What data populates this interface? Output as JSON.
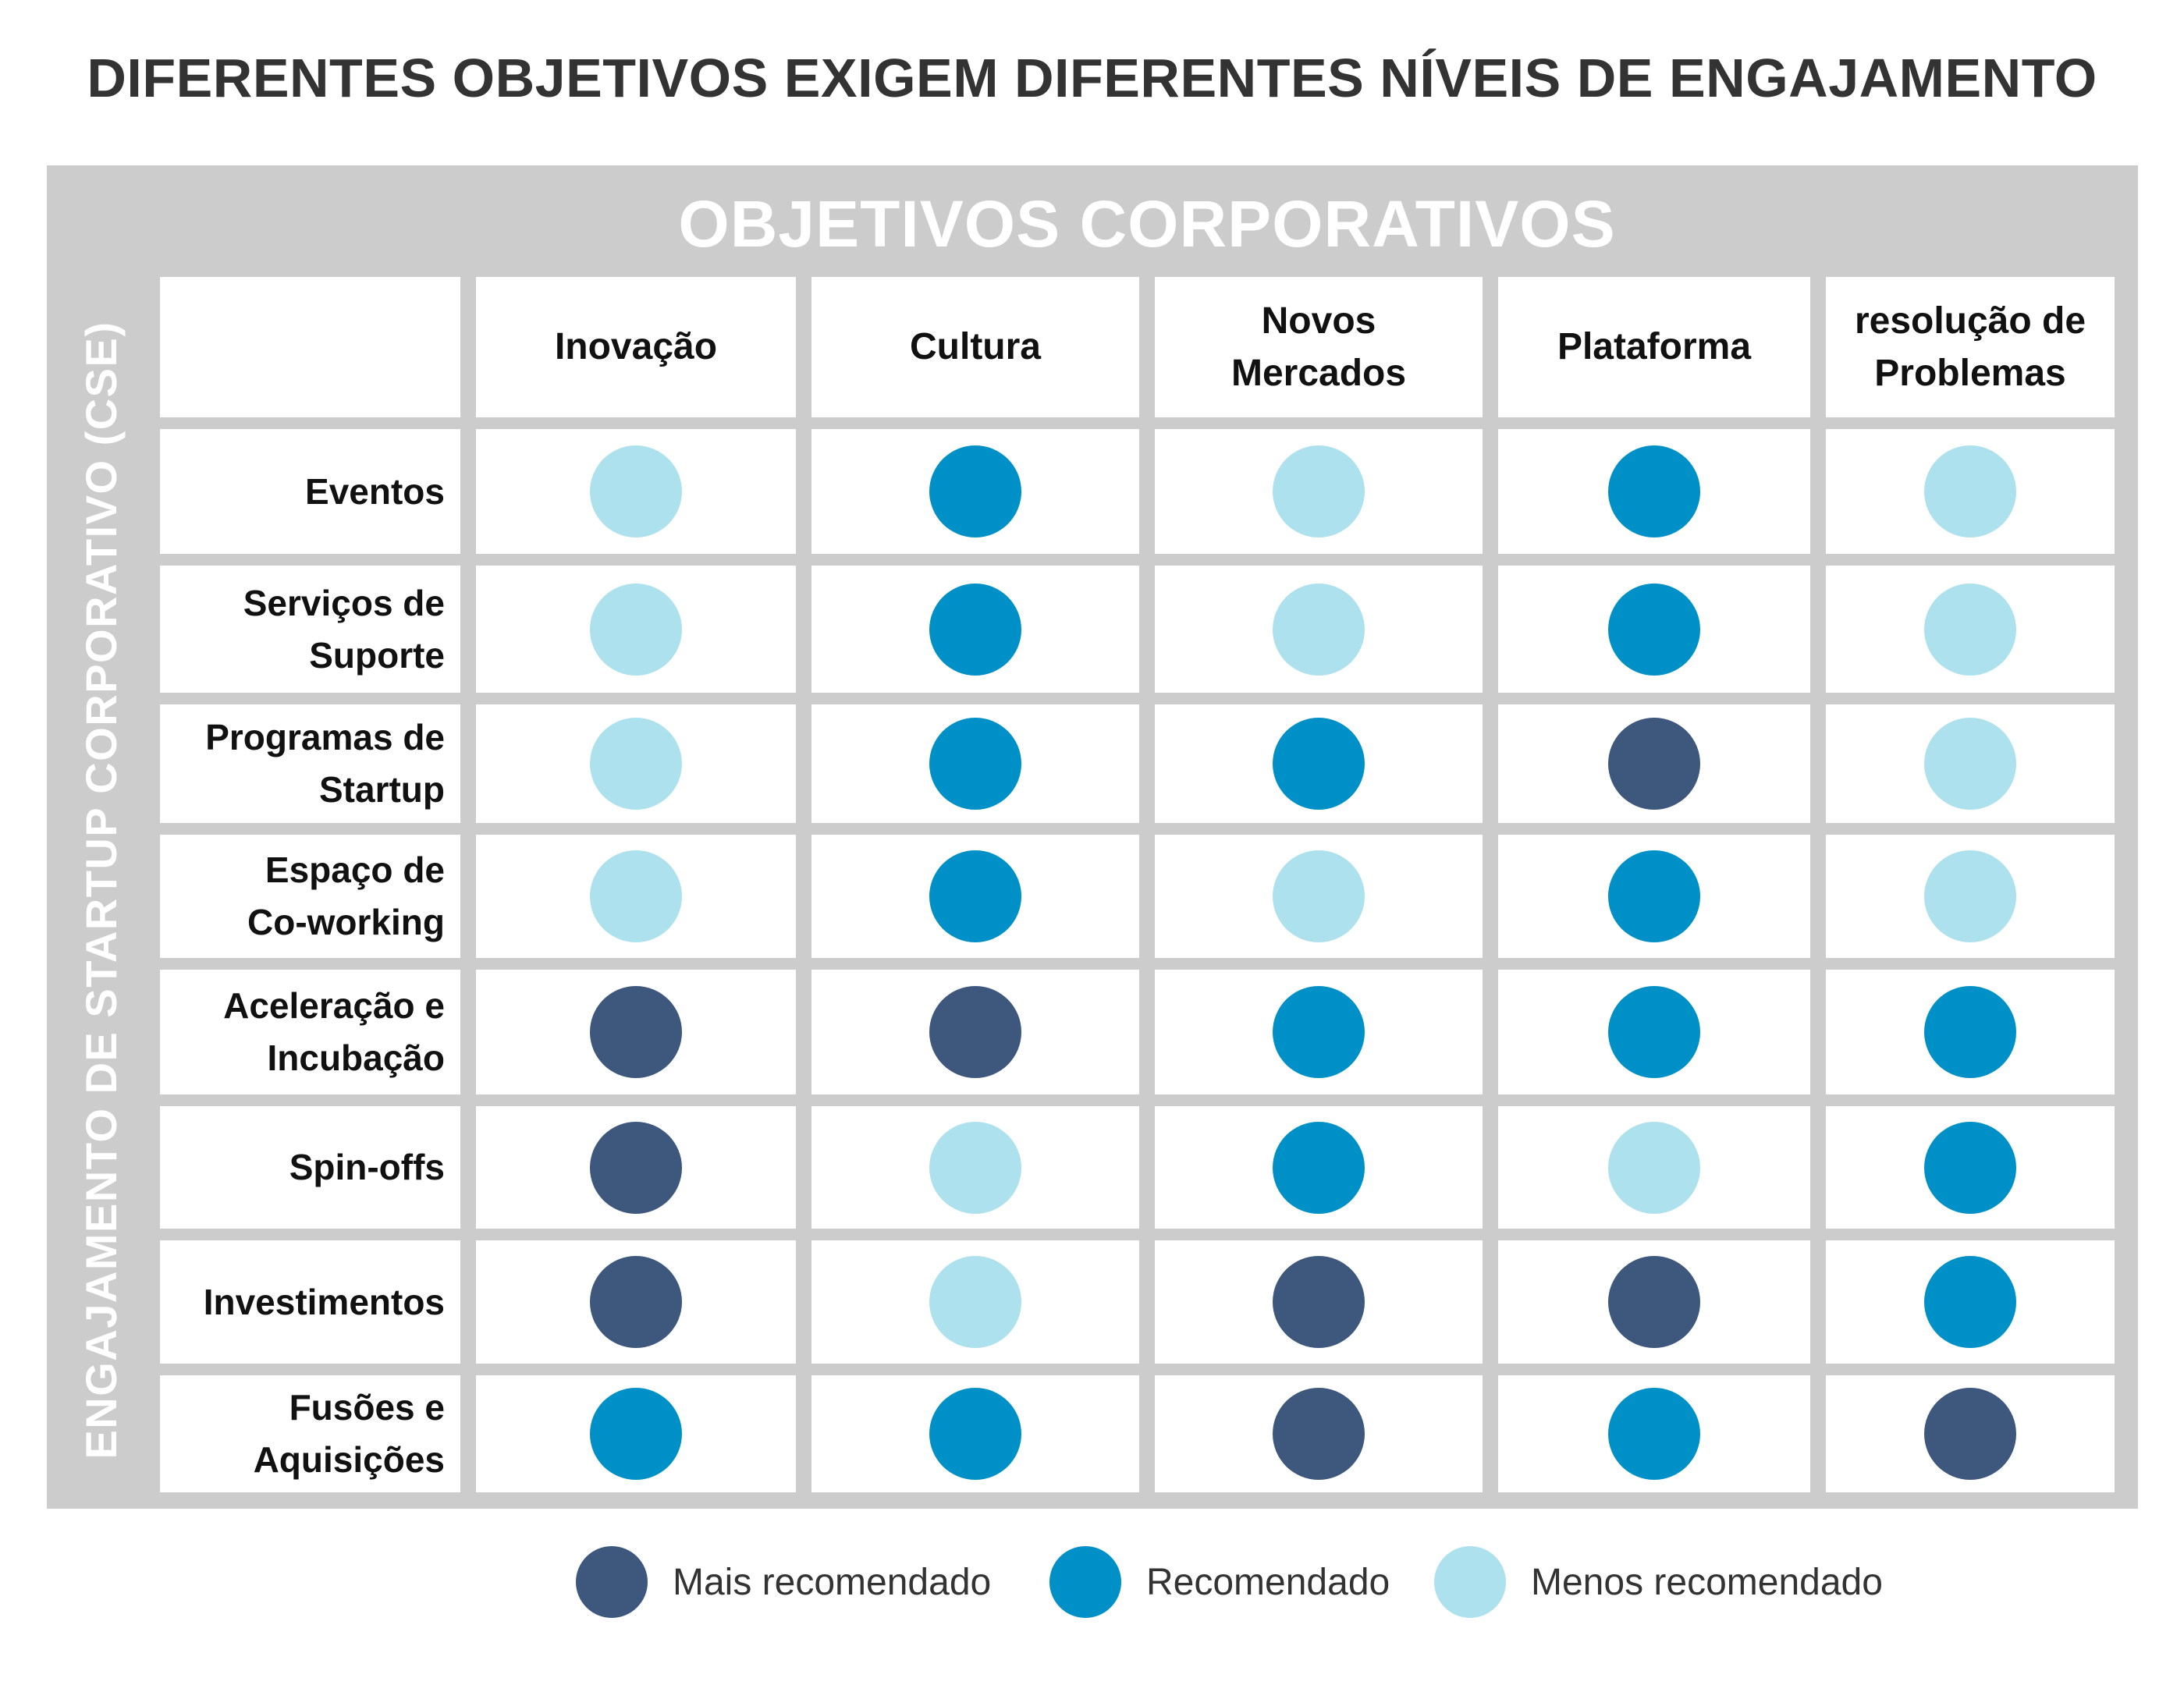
{
  "title": "DIFERENTES OBJETIVOS EXIGEM DIFERENTES NÍVEIS DE ENGAJAMENTO",
  "chart_data": {
    "type": "table",
    "column_axis_title": "OBJETIVOS CORPORATIVOS",
    "row_axis_title": "ENGAJAMENTO DE STARTUP CORPORATIVO  (CSE)",
    "columns": [
      [
        "Inovação"
      ],
      [
        "Cultura"
      ],
      [
        "Novos",
        "Mercados"
      ],
      [
        "Plataforma"
      ],
      [
        "resolução de",
        "Problemas"
      ]
    ],
    "rows": [
      {
        "label": [
          "Eventos"
        ],
        "values": [
          "menos",
          "recomendado",
          "menos",
          "recomendado",
          "menos"
        ]
      },
      {
        "label": [
          "Serviços de",
          "Suporte"
        ],
        "values": [
          "menos",
          "recomendado",
          "menos",
          "recomendado",
          "menos"
        ]
      },
      {
        "label": [
          "Programas de",
          "Startup"
        ],
        "values": [
          "menos",
          "recomendado",
          "recomendado",
          "mais",
          "menos"
        ]
      },
      {
        "label": [
          "Espaço de",
          "Co-working"
        ],
        "values": [
          "menos",
          "recomendado",
          "menos",
          "recomendado",
          "menos"
        ]
      },
      {
        "label": [
          "Aceleração e",
          "Incubação"
        ],
        "values": [
          "mais",
          "mais",
          "recomendado",
          "recomendado",
          "recomendado"
        ]
      },
      {
        "label": [
          "Spin-offs"
        ],
        "values": [
          "mais",
          "menos",
          "recomendado",
          "menos",
          "recomendado"
        ]
      },
      {
        "label": [
          "Investimentos"
        ],
        "values": [
          "mais",
          "menos",
          "mais",
          "mais",
          "recomendado"
        ]
      },
      {
        "label": [
          "Fusões e",
          "Aquisições"
        ],
        "values": [
          "recomendado",
          "recomendado",
          "mais",
          "recomendado",
          "mais"
        ]
      }
    ],
    "legend": [
      {
        "key": "mais",
        "label": "Mais recomendado",
        "color": "#3d577d"
      },
      {
        "key": "recomendado",
        "label": "Recomendado",
        "color": "#0090c8"
      },
      {
        "key": "menos",
        "label": "Menos recomendado",
        "color": "#aee1ee"
      }
    ],
    "legend_position": "bottom"
  },
  "colors": {
    "frame": "#cccccc",
    "title_text": "#333333",
    "cell_background": "#ffffff"
  }
}
